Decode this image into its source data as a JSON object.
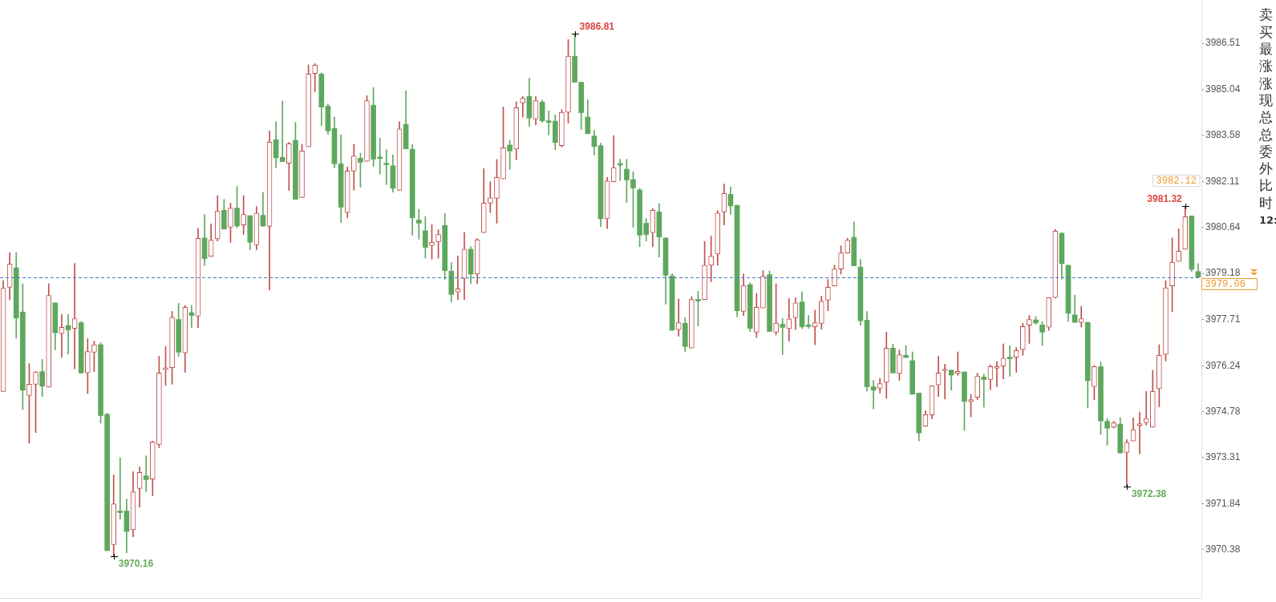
{
  "chart_data": {
    "type": "candlestick",
    "categories": [
      null,
      null,
      null,
      null,
      null,
      null,
      null,
      null,
      null,
      null,
      null,
      null,
      null,
      null,
      null,
      null,
      null,
      null,
      null,
      null,
      null,
      null,
      null,
      null,
      null,
      null,
      null,
      null,
      null,
      null,
      null,
      null,
      null,
      null,
      null,
      null,
      null,
      null,
      null,
      null,
      null,
      null,
      null,
      null,
      null,
      null,
      null,
      null,
      null,
      null,
      null,
      null,
      null,
      null,
      null,
      null,
      null,
      null,
      null,
      null,
      null,
      null,
      null,
      null,
      null,
      null,
      null,
      null,
      null,
      null,
      null,
      null,
      null,
      null,
      null,
      null,
      null,
      null,
      null,
      null,
      null,
      null,
      null,
      null,
      null,
      null,
      null,
      null,
      null,
      null,
      null,
      null,
      null,
      null,
      null,
      null,
      null,
      null,
      null,
      null,
      null,
      null,
      null,
      null,
      null,
      null,
      null,
      null,
      null,
      null,
      null,
      null,
      null,
      null,
      null,
      null,
      null,
      null,
      null,
      null,
      null,
      null,
      null,
      null,
      null,
      null,
      null,
      null,
      null,
      null,
      null,
      null,
      null,
      null,
      null,
      null,
      null,
      null,
      null,
      null,
      null,
      null,
      null,
      null,
      null,
      null,
      null,
      null,
      null,
      null,
      null,
      null,
      null,
      null,
      null,
      null,
      null,
      null,
      null,
      null,
      null,
      null,
      null,
      null,
      null,
      null,
      null,
      null,
      null,
      null,
      null,
      null,
      null,
      null,
      null,
      null,
      null,
      null,
      null,
      null,
      null,
      null,
      null,
      null,
      null
    ],
    "ohlc": [
      [
        3975.42,
        3978.95,
        3975.42,
        3978.71
      ],
      [
        3978.74,
        3979.84,
        3978.34,
        3979.48
      ],
      [
        3979.36,
        3979.84,
        3977.12,
        3977.76
      ],
      [
        3977.95,
        3978.85,
        3974.85,
        3975.46
      ],
      [
        3975.29,
        3976.31,
        3973.77,
        3975.65
      ],
      [
        3975.65,
        3976.06,
        3974.11,
        3976.04
      ],
      [
        3976.05,
        3976.44,
        3975.26,
        3975.59
      ],
      [
        3975.56,
        3978.85,
        3975.56,
        3978.48
      ],
      [
        3978.24,
        3978.24,
        3976.75,
        3977.29
      ],
      [
        3977.26,
        3977.87,
        3976.5,
        3977.46
      ],
      [
        3977.52,
        3977.87,
        3976.61,
        3977.38
      ],
      [
        3977.43,
        3979.5,
        3976.14,
        3977.74
      ],
      [
        3977.61,
        3977.65,
        3975.99,
        3976.01
      ],
      [
        3976.01,
        3977.1,
        3975.36,
        3976.69
      ],
      [
        3976.67,
        3977.02,
        3976.05,
        3976.91
      ],
      [
        3976.91,
        3976.97,
        3974.41,
        3974.65
      ],
      [
        3974.69,
        3974.73,
        3970.35,
        3970.35
      ],
      [
        3970.54,
        3972.76,
        3970.16,
        3971.84
      ],
      [
        3971.61,
        3973.31,
        3971.35,
        3971.56
      ],
      [
        3971.61,
        3971.99,
        3970.28,
        3970.96
      ],
      [
        3971.01,
        3972.86,
        3970.79,
        3972.22
      ],
      [
        3972.33,
        3973.02,
        3971.74,
        3972.84
      ],
      [
        3972.73,
        3973.37,
        3972.23,
        3972.61
      ],
      [
        3972.63,
        3973.84,
        3972.1,
        3973.81
      ],
      [
        3973.73,
        3976.54,
        3973.63,
        3976.01
      ],
      [
        3976.12,
        3976.85,
        3975.61,
        3976.14
      ],
      [
        3976.18,
        3977.97,
        3975.65,
        3977.78
      ],
      [
        3977.71,
        3978.23,
        3976.54,
        3976.67
      ],
      [
        3976.65,
        3978.16,
        3976.03,
        3978.1
      ],
      [
        3977.93,
        3978.16,
        3977.46,
        3977.84
      ],
      [
        3977.82,
        3980.62,
        3977.45,
        3980.3
      ],
      [
        3980.31,
        3981.05,
        3979.44,
        3979.65
      ],
      [
        3979.73,
        3980.76,
        3979.73,
        3980.24
      ],
      [
        3980.28,
        3981.66,
        3980.21,
        3981.16
      ],
      [
        3981.19,
        3981.54,
        3980.59,
        3980.59
      ],
      [
        3980.65,
        3981.42,
        3980.17,
        3981.26
      ],
      [
        3981.26,
        3981.95,
        3980.63,
        3980.69
      ],
      [
        3980.72,
        3981.66,
        3980.42,
        3981.06
      ],
      [
        3981.02,
        3981.02,
        3979.93,
        3980.17
      ],
      [
        3980.09,
        3981.31,
        3979.93,
        3981.1
      ],
      [
        3981.03,
        3981.76,
        3980.67,
        3980.69
      ],
      [
        3980.68,
        3983.72,
        3978.65,
        3983.36
      ],
      [
        3983.44,
        3984.01,
        3982.54,
        3982.86
      ],
      [
        3982.88,
        3984.67,
        3982.74,
        3982.74
      ],
      [
        3982.69,
        3983.36,
        3981.82,
        3983.31
      ],
      [
        3983.42,
        3983.99,
        3981.54,
        3981.54
      ],
      [
        3981.6,
        3983.29,
        3981.6,
        3983.08
      ],
      [
        3983.21,
        3985.82,
        3983.21,
        3985.53
      ],
      [
        3985.55,
        3985.86,
        3984.97,
        3985.81
      ],
      [
        3985.53,
        3985.57,
        3983.89,
        3984.48
      ],
      [
        3984.51,
        3984.58,
        3983.61,
        3983.72
      ],
      [
        3983.8,
        3984.16,
        3982.54,
        3982.67
      ],
      [
        3982.67,
        3983.59,
        3980.8,
        3981.29
      ],
      [
        3981.12,
        3982.57,
        3980.95,
        3982.44
      ],
      [
        3982.44,
        3983.29,
        3981.83,
        3982.92
      ],
      [
        3982.85,
        3983.01,
        3981.93,
        3982.72
      ],
      [
        3982.75,
        3984.84,
        3982.75,
        3984.68
      ],
      [
        3984.54,
        3985.1,
        3982.59,
        3982.82
      ],
      [
        3982.86,
        3983.49,
        3982.34,
        3982.84
      ],
      [
        3982.67,
        3983.12,
        3982.01,
        3982.64
      ],
      [
        3982.61,
        3982.95,
        3981.77,
        3981.89
      ],
      [
        3981.83,
        3984.01,
        3981.83,
        3983.78
      ],
      [
        3983.93,
        3984.99,
        3983.15,
        3983.15
      ],
      [
        3983.14,
        3983.29,
        3980.4,
        3980.95
      ],
      [
        3980.88,
        3981.22,
        3980.27,
        3980.78
      ],
      [
        3980.54,
        3980.99,
        3979.67,
        3980.01
      ],
      [
        3980.07,
        3980.74,
        3979.63,
        3980.17
      ],
      [
        3980.18,
        3980.57,
        3979.66,
        3980.42
      ],
      [
        3980.71,
        3981.09,
        3978.99,
        3979.27
      ],
      [
        3979.25,
        3979.52,
        3978.27,
        3978.51
      ],
      [
        3978.59,
        3979.73,
        3978.35,
        3978.69
      ],
      [
        3979.02,
        3980.48,
        3978.35,
        3979.95
      ],
      [
        3979.95,
        3980.03,
        3978.86,
        3979.16
      ],
      [
        3979.16,
        3980.29,
        3978.85,
        3980.25
      ],
      [
        3980.48,
        3982.52,
        3980.48,
        3981.42
      ],
      [
        3981.42,
        3982.1,
        3981.12,
        3981.59
      ],
      [
        3981.57,
        3982.81,
        3980.78,
        3982.24
      ],
      [
        3982.19,
        3984.48,
        3982.19,
        3983.18
      ],
      [
        3983.27,
        3983.42,
        3982.5,
        3983.08
      ],
      [
        3983.14,
        3984.65,
        3982.8,
        3984.46
      ],
      [
        3984.61,
        3984.81,
        3984.16,
        3984.76
      ],
      [
        3984.82,
        3985.4,
        3983.86,
        3984.13
      ],
      [
        3984.1,
        3984.81,
        3983.91,
        3984.68
      ],
      [
        3984.64,
        3984.7,
        3983.99,
        3984.04
      ],
      [
        3984.0,
        3984.36,
        3983.59,
        3983.99
      ],
      [
        3984.03,
        3984.23,
        3983.12,
        3983.35
      ],
      [
        3983.25,
        3984.4,
        3983.21,
        3984.31
      ],
      [
        3984.31,
        3986.63,
        3983.97,
        3986.1
      ],
      [
        3986.1,
        3986.81,
        3985.27,
        3985.27
      ],
      [
        3985.27,
        3985.27,
        3983.76,
        3984.3
      ],
      [
        3984.16,
        3984.71,
        3983.63,
        3983.63
      ],
      [
        3983.56,
        3983.74,
        3982.95,
        3983.22
      ],
      [
        3983.25,
        3983.33,
        3980.67,
        3980.92
      ],
      [
        3980.92,
        3982.24,
        3980.61,
        3982.12
      ],
      [
        3982.1,
        3983.57,
        3982.1,
        3982.55
      ],
      [
        3982.65,
        3982.82,
        3982.14,
        3982.63
      ],
      [
        3982.5,
        3982.82,
        3981.44,
        3982.16
      ],
      [
        3982.17,
        3982.42,
        3980.65,
        3981.9
      ],
      [
        3981.84,
        3981.89,
        3980.03,
        3980.4
      ],
      [
        3980.78,
        3980.93,
        3980.21,
        3980.42
      ],
      [
        3980.48,
        3981.25,
        3980.03,
        3981.19
      ],
      [
        3981.14,
        3981.4,
        3979.7,
        3980.34
      ],
      [
        3980.31,
        3980.31,
        3978.2,
        3979.12
      ],
      [
        3979.1,
        3979.17,
        3977.37,
        3977.37
      ],
      [
        3977.39,
        3978.37,
        3977.18,
        3977.61
      ],
      [
        3977.59,
        3977.77,
        3976.69,
        3976.85
      ],
      [
        3976.8,
        3978.44,
        3976.8,
        3978.35
      ],
      [
        3978.31,
        3978.61,
        3977.5,
        3978.3
      ],
      [
        3978.35,
        3980.2,
        3978.35,
        3979.44
      ],
      [
        3979.44,
        3980.37,
        3978.91,
        3979.73
      ],
      [
        3979.8,
        3981.18,
        3979.44,
        3981.1
      ],
      [
        3981.14,
        3982.03,
        3980.72,
        3981.73
      ],
      [
        3981.7,
        3981.93,
        3981.06,
        3981.33
      ],
      [
        3981.35,
        3981.35,
        3977.8,
        3977.99
      ],
      [
        3977.97,
        3979.16,
        3977.84,
        3978.8
      ],
      [
        3978.82,
        3978.88,
        3977.33,
        3977.43
      ],
      [
        3977.31,
        3978.54,
        3977.14,
        3978.1
      ],
      [
        3978.08,
        3979.27,
        3978.08,
        3979.09
      ],
      [
        3979.14,
        3979.26,
        3977.33,
        3977.33
      ],
      [
        3977.31,
        3978.85,
        3977.22,
        3977.6
      ],
      [
        3977.56,
        3977.74,
        3976.59,
        3977.46
      ],
      [
        3977.42,
        3978.38,
        3977.02,
        3977.73
      ],
      [
        3977.77,
        3978.4,
        3977.39,
        3978.24
      ],
      [
        3978.27,
        3978.59,
        3977.42,
        3977.48
      ],
      [
        3977.51,
        3977.84,
        3977.43,
        3977.49
      ],
      [
        3977.48,
        3978.01,
        3976.91,
        3977.61
      ],
      [
        3977.59,
        3978.46,
        3977.4,
        3978.29
      ],
      [
        3978.33,
        3978.99,
        3977.99,
        3978.74
      ],
      [
        3978.78,
        3979.44,
        3978.78,
        3979.32
      ],
      [
        3979.32,
        3980.06,
        3979.16,
        3979.83
      ],
      [
        3979.83,
        3980.3,
        3979.83,
        3980.24
      ],
      [
        3980.33,
        3980.82,
        3979.42,
        3979.42
      ],
      [
        3979.38,
        3979.63,
        3977.53,
        3977.67
      ],
      [
        3977.69,
        3977.97,
        3975.43,
        3975.57
      ],
      [
        3975.57,
        3975.77,
        3974.86,
        3975.46
      ],
      [
        3975.52,
        3975.84,
        3975.37,
        3975.67
      ],
      [
        3975.71,
        3977.31,
        3975.2,
        3976.8
      ],
      [
        3976.8,
        3976.93,
        3976.01,
        3976.01
      ],
      [
        3975.99,
        3976.74,
        3975.77,
        3976.59
      ],
      [
        3976.57,
        3976.88,
        3976.5,
        3976.5
      ],
      [
        3976.4,
        3976.68,
        3975.33,
        3975.33
      ],
      [
        3975.37,
        3975.37,
        3973.84,
        3974.1
      ],
      [
        3974.31,
        3974.8,
        3974.31,
        3974.68
      ],
      [
        3974.67,
        3975.6,
        3974.55,
        3975.6
      ],
      [
        3975.63,
        3976.54,
        3975.26,
        3976.01
      ],
      [
        3976.08,
        3976.29,
        3975.18,
        3976.09
      ],
      [
        3976.1,
        3976.1,
        3975.46,
        3975.94
      ],
      [
        3975.99,
        3976.68,
        3975.93,
        3976.06
      ],
      [
        3976.04,
        3976.04,
        3974.18,
        3975.1
      ],
      [
        3975.1,
        3975.33,
        3974.61,
        3975.16
      ],
      [
        3975.23,
        3976.0,
        3975.16,
        3975.91
      ],
      [
        3975.88,
        3975.97,
        3974.92,
        3975.8
      ],
      [
        3975.8,
        3976.27,
        3975.48,
        3976.21
      ],
      [
        3976.16,
        3976.37,
        3975.57,
        3976.2
      ],
      [
        3976.23,
        3976.93,
        3975.82,
        3976.48
      ],
      [
        3976.48,
        3976.88,
        3975.9,
        3976.46
      ],
      [
        3976.51,
        3976.82,
        3976.03,
        3976.72
      ],
      [
        3976.76,
        3977.59,
        3976.57,
        3977.49
      ],
      [
        3977.53,
        3977.84,
        3976.95,
        3977.71
      ],
      [
        3977.7,
        3977.8,
        3977.56,
        3977.6
      ],
      [
        3977.54,
        3977.64,
        3976.89,
        3977.31
      ],
      [
        3977.47,
        3978.41,
        3977.37,
        3978.41
      ],
      [
        3978.41,
        3980.58,
        3978.39,
        3980.53
      ],
      [
        3980.46,
        3980.48,
        3979.0,
        3979.49
      ],
      [
        3979.44,
        3979.44,
        3977.65,
        3977.91
      ],
      [
        3977.86,
        3978.49,
        3977.62,
        3977.62
      ],
      [
        3977.62,
        3978.13,
        3977.47,
        3977.74
      ],
      [
        3977.62,
        3977.62,
        3974.89,
        3975.76
      ],
      [
        3975.58,
        3976.24,
        3975.15,
        3976.21
      ],
      [
        3976.21,
        3976.36,
        3974.05,
        3974.48
      ],
      [
        3974.47,
        3974.55,
        3973.71,
        3974.25
      ],
      [
        3974.28,
        3974.47,
        3974.25,
        3974.42
      ],
      [
        3974.38,
        3974.58,
        3973.46,
        3973.46
      ],
      [
        3973.48,
        3973.89,
        3972.38,
        3973.79
      ],
      [
        3973.84,
        3974.58,
        3973.84,
        3974.2
      ],
      [
        3974.34,
        3974.76,
        3973.43,
        3974.36
      ],
      [
        3974.42,
        3975.42,
        3974.35,
        3974.56
      ],
      [
        3974.28,
        3976.09,
        3974.28,
        3975.42
      ],
      [
        3975.51,
        3976.91,
        3974.93,
        3976.57
      ],
      [
        3976.6,
        3978.95,
        3976.39,
        3978.72
      ],
      [
        3978.78,
        3980.31,
        3977.96,
        3979.54
      ],
      [
        3979.56,
        3980.6,
        3979.56,
        3979.89
      ],
      [
        3979.95,
        3981.32,
        3979.95,
        3980.99
      ],
      [
        3981.01,
        3981.01,
        3979.24,
        3979.31
      ],
      [
        3979.24,
        3979.49,
        3979.06,
        3979.06
      ]
    ],
    "ylim": [
      3968.84,
      3987.89
    ],
    "yticks": [
      3970.38,
      3971.84,
      3973.31,
      3974.78,
      3976.24,
      3977.71,
      3979.18,
      3980.64,
      3982.11,
      3983.58,
      3985.04,
      3986.51
    ],
    "tick_labels": "y",
    "ref_lines": [
      {
        "axis": "y",
        "value": 3979.06,
        "label": "3979.06",
        "color": "#3b7fc4",
        "line_style": "dashed"
      }
    ],
    "annotations": [
      "3986.81",
      "3970.16",
      "3981.32",
      "3972.38",
      "3982.12",
      "卖",
      "买",
      "最",
      "涨",
      "涨",
      "现",
      "总",
      "总",
      "委",
      "外",
      "比",
      "时",
      "12:"
    ]
  }
}
